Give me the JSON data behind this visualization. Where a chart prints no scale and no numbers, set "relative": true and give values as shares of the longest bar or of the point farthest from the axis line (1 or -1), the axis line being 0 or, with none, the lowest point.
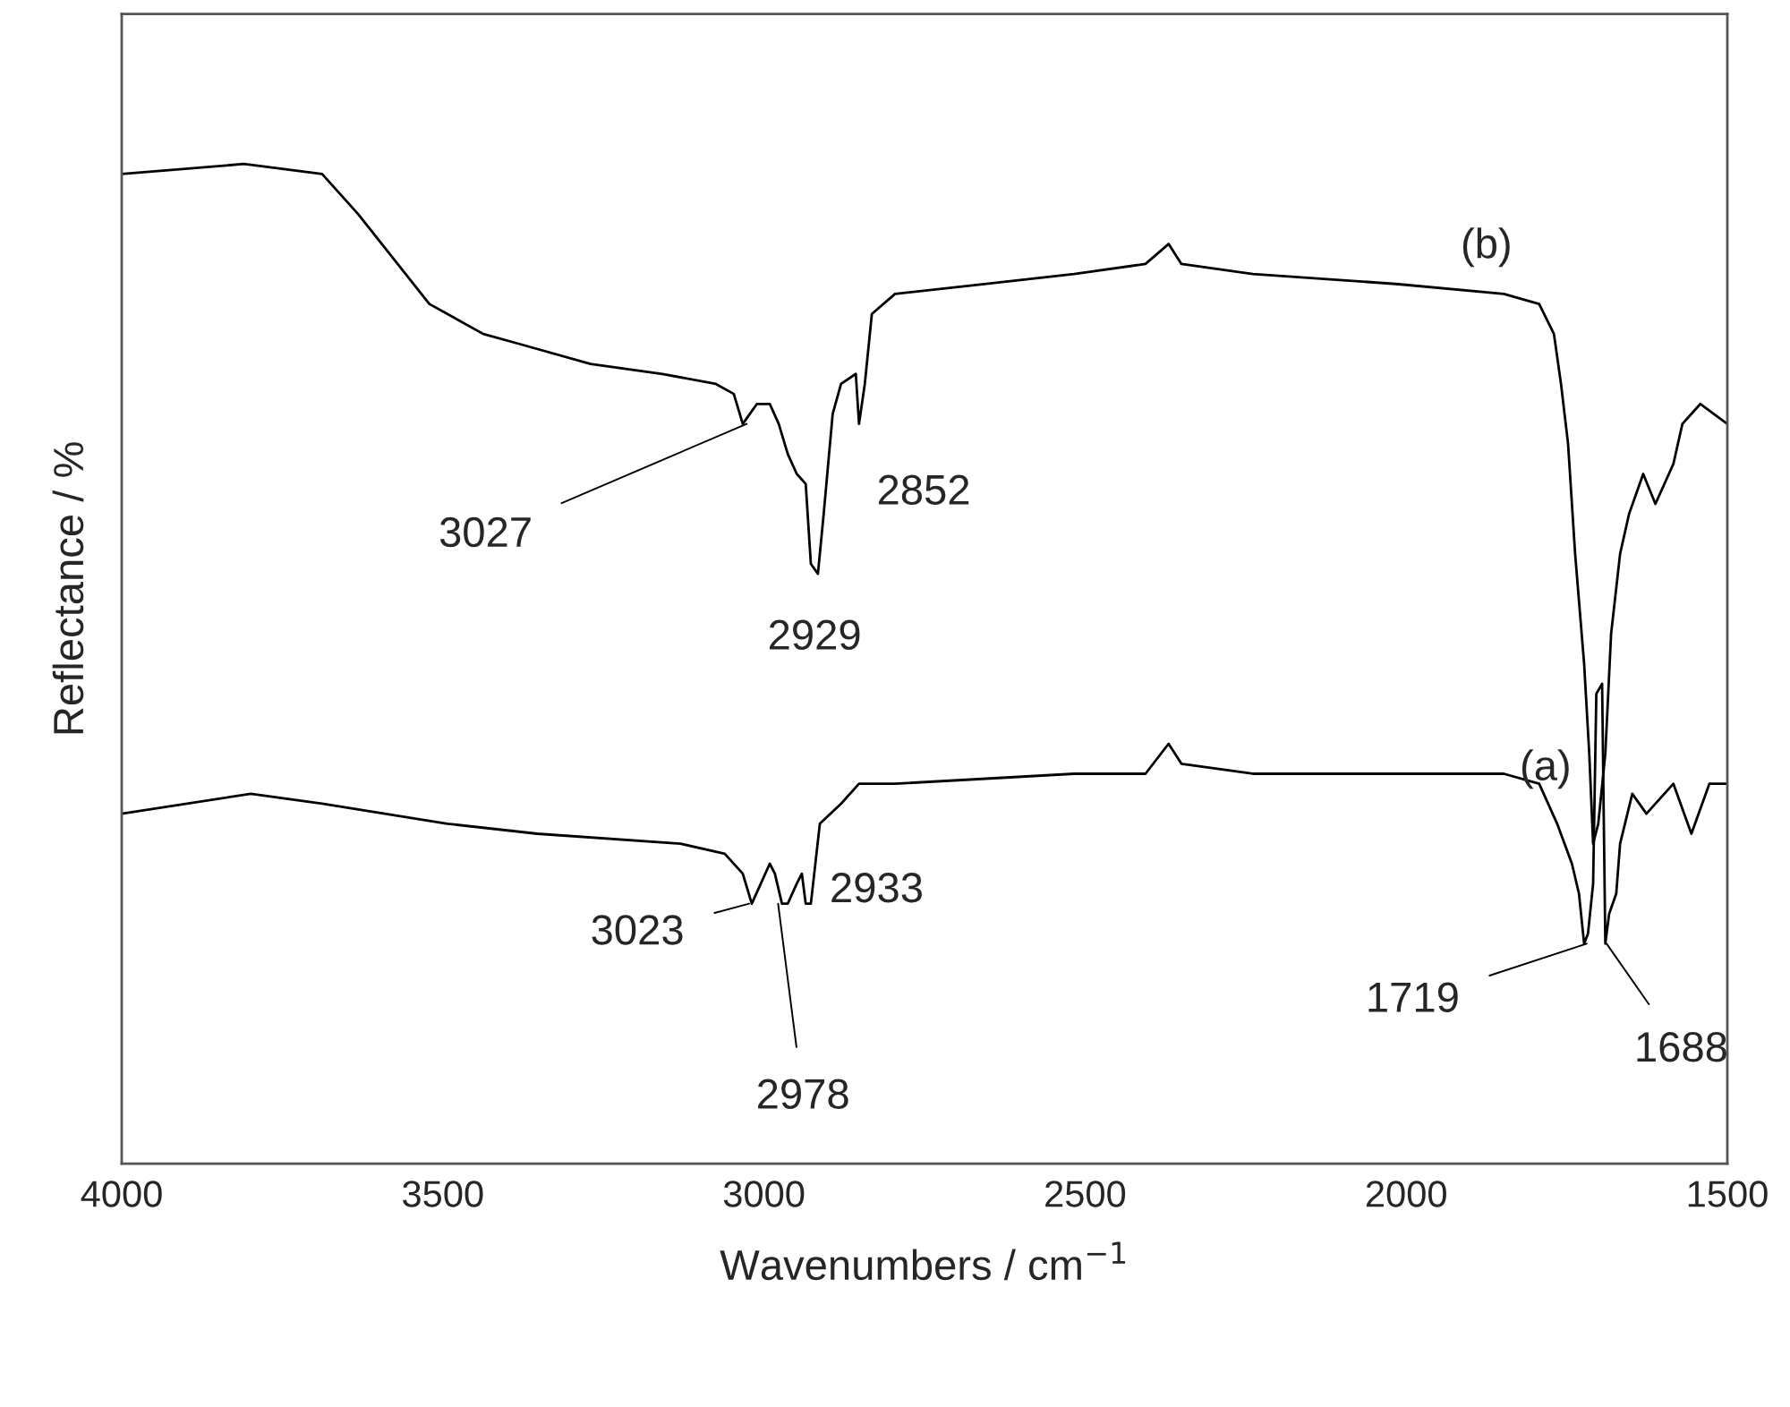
{
  "chart_data": {
    "type": "line",
    "relative": true,
    "xlabel": "Wavenumbers / cm$^{−1}$",
    "ylabel": "Reflectance / %",
    "xlim": [
      4000,
      1500
    ],
    "xticks": [
      4000,
      3500,
      3000,
      2500,
      2000,
      1500
    ],
    "tick_labels": "x",
    "grid": false,
    "legend": false,
    "series": [
      {
        "name": "(a)",
        "color": "#000000",
        "x": [
          4000,
          3799,
          3688,
          3493,
          3353,
          3130,
          3061,
          3033,
          3019,
          3005,
          2991,
          2983,
          2972,
          2963,
          2949,
          2941,
          2935,
          2927,
          2913,
          2880,
          2852,
          2846,
          2796,
          2517,
          2406,
          2370,
          2350,
          2239,
          2016,
          1848,
          1793,
          1765,
          1742,
          1731,
          1723,
          1717,
          1709,
          1704,
          1695,
          1690,
          1684,
          1673,
          1667,
          1648,
          1626,
          1584,
          1556,
          1528,
          1500
        ],
        "values": [
          0.35,
          0.37,
          0.36,
          0.34,
          0.33,
          0.32,
          0.31,
          0.29,
          0.26,
          0.28,
          0.3,
          0.29,
          0.26,
          0.26,
          0.28,
          0.29,
          0.26,
          0.26,
          0.34,
          0.36,
          0.38,
          0.38,
          0.38,
          0.39,
          0.39,
          0.42,
          0.4,
          0.39,
          0.39,
          0.39,
          0.38,
          0.34,
          0.3,
          0.27,
          0.22,
          0.23,
          0.28,
          0.47,
          0.48,
          0.22,
          0.25,
          0.27,
          0.32,
          0.37,
          0.35,
          0.38,
          0.33,
          0.38,
          0.38
        ]
      },
      {
        "name": "(b)",
        "color": "#000000",
        "x": [
          4000,
          3810,
          3688,
          3632,
          3521,
          3437,
          3381,
          3270,
          3158,
          3075,
          3047,
          3033,
          3011,
          2991,
          2977,
          2963,
          2949,
          2935,
          2927,
          2916,
          2907,
          2893,
          2880,
          2857,
          2852,
          2843,
          2832,
          2796,
          2657,
          2517,
          2406,
          2370,
          2350,
          2239,
          2016,
          1848,
          1793,
          1770,
          1759,
          1748,
          1737,
          1723,
          1715,
          1709,
          1701,
          1690,
          1681,
          1667,
          1653,
          1631,
          1612,
          1584,
          1570,
          1542,
          1500
        ],
        "values": [
          0.99,
          1.0,
          0.99,
          0.95,
          0.86,
          0.83,
          0.82,
          0.8,
          0.79,
          0.78,
          0.77,
          0.74,
          0.76,
          0.76,
          0.74,
          0.71,
          0.69,
          0.68,
          0.6,
          0.59,
          0.65,
          0.75,
          0.78,
          0.79,
          0.74,
          0.78,
          0.85,
          0.87,
          0.88,
          0.89,
          0.9,
          0.92,
          0.9,
          0.89,
          0.88,
          0.87,
          0.86,
          0.83,
          0.78,
          0.72,
          0.61,
          0.5,
          0.41,
          0.32,
          0.34,
          0.41,
          0.53,
          0.61,
          0.65,
          0.69,
          0.66,
          0.7,
          0.74,
          0.76,
          0.74
        ]
      }
    ],
    "annotations": [
      {
        "text": "3027",
        "x": 3027,
        "y": 0.74
      },
      {
        "text": "2929",
        "x": 2929,
        "y": 0.59
      },
      {
        "text": "2852",
        "x": 2852,
        "y": 0.74
      },
      {
        "text": "3023",
        "x": 3023,
        "y": 0.26
      },
      {
        "text": "2978",
        "x": 2978,
        "y": 0.26
      },
      {
        "text": "2933",
        "x": 2933,
        "y": 0.26
      },
      {
        "text": "1719",
        "x": 1719,
        "y": 0.22
      },
      {
        "text": "1688",
        "x": 1688,
        "y": 0.22
      }
    ]
  }
}
